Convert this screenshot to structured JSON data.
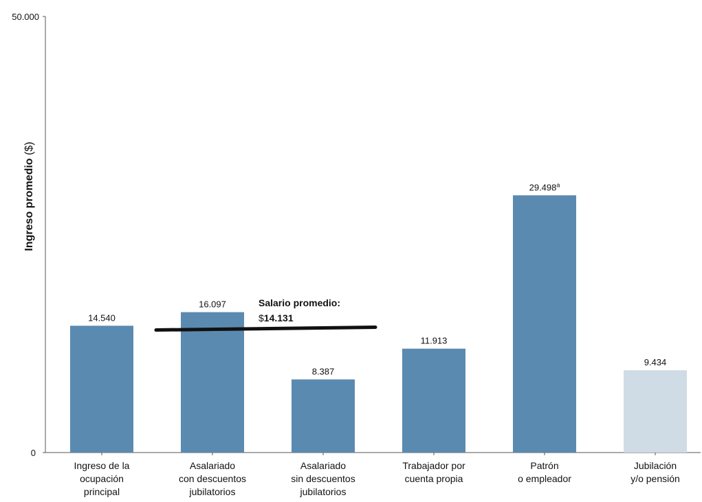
{
  "chart_data": {
    "type": "bar",
    "ylabel": "Ingreso promedio",
    "ylabel_unit": "($)",
    "ylim": [
      0,
      50000
    ],
    "y_ticks": [
      "0",
      "50.000"
    ],
    "grid": false,
    "categories": [
      [
        "Ingreso de la",
        "ocupación",
        "principal"
      ],
      [
        "Asalariado",
        "con descuentos",
        "jubilatorios"
      ],
      [
        "Asalariado",
        "sin descuentos",
        "jubilatorios"
      ],
      [
        "Trabajador por",
        "cuenta propia"
      ],
      [
        "Patrón",
        "o empleador"
      ],
      [
        "Jubilación",
        "y/o pensión"
      ]
    ],
    "values": [
      14540,
      16097,
      8387,
      11913,
      29498,
      9434
    ],
    "value_labels": [
      "14.540",
      "16.097",
      "8.387",
      "11.913",
      "29.498",
      "9.434"
    ],
    "value_superscripts": [
      "",
      "",
      "",
      "",
      "a",
      ""
    ],
    "bar_colors": [
      "#5b8ab0",
      "#5b8ab0",
      "#5b8ab0",
      "#5b8ab0",
      "#5b8ab0",
      "#cfdce6"
    ],
    "reference_line": {
      "value": 14131,
      "label": "Salario promedio:",
      "value_prefix": "$",
      "value_text": "14.131",
      "color": "#111111"
    }
  }
}
